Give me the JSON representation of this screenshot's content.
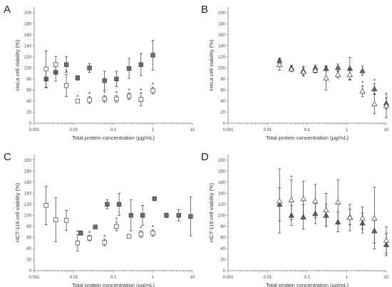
{
  "chart_data": [
    {
      "panel": "A",
      "type": "scatter",
      "xlabel": "Total protein concentration (µg/mL)",
      "ylabel": "HeLa cell viability (%)",
      "xscale": "log",
      "xlim": [
        0.001,
        10
      ],
      "ylim": [
        0,
        210
      ],
      "x_ticks": [
        "0.001",
        "0.01",
        "0.1",
        "1",
        "10"
      ],
      "y_ticks": [
        "0",
        "20",
        "40",
        "60",
        "80",
        "100",
        "120",
        "140",
        "160",
        "180",
        "200"
      ],
      "series": [
        {
          "marker": "filled-square",
          "points": [
            {
              "x": 0.002,
              "y": 80,
              "err": 16
            },
            {
              "x": 0.0035,
              "y": 92,
              "err": 16
            },
            {
              "x": 0.0065,
              "y": 106,
              "err": 14
            },
            {
              "x": 0.0125,
              "y": 82,
              "err": 4
            },
            {
              "x": 0.025,
              "y": 100,
              "err": 8
            },
            {
              "x": 0.06,
              "y": 77,
              "err": 17
            },
            {
              "x": 0.12,
              "y": 80,
              "err": 14
            },
            {
              "x": 0.25,
              "y": 99,
              "err": 18
            },
            {
              "x": 0.5,
              "y": 106,
              "err": 20
            },
            {
              "x": 1.0,
              "y": 123,
              "err": 27
            }
          ]
        },
        {
          "marker": "open-square",
          "points": [
            {
              "x": 0.002,
              "y": 98,
              "err": 33
            },
            {
              "x": 0.0035,
              "y": 106,
              "err": 15
            },
            {
              "x": 0.0065,
              "y": 68,
              "err": 20,
              "sig": true
            },
            {
              "x": 0.0125,
              "y": 40,
              "err": 3,
              "sig": true
            },
            {
              "x": 0.025,
              "y": 42,
              "err": 6,
              "sig": true
            },
            {
              "x": 0.06,
              "y": 44,
              "err": 6,
              "sig": true
            },
            {
              "x": 0.12,
              "y": 44,
              "err": 6,
              "sig": true
            },
            {
              "x": 0.25,
              "y": 49,
              "err": 6,
              "sig": true
            },
            {
              "x": 0.5,
              "y": 43,
              "err": 12,
              "sig": true
            },
            {
              "x": 1.0,
              "y": 59,
              "err": 6,
              "sig": true
            }
          ]
        }
      ]
    },
    {
      "panel": "B",
      "type": "scatter",
      "xlabel": "Total protein concentration (µg/mL)",
      "ylabel": "HeLa cell viability (%)",
      "xscale": "log",
      "xlim": [
        0.001,
        10
      ],
      "ylim": [
        0,
        210
      ],
      "x_ticks": [
        "0.001",
        "0.01",
        "0.1",
        "1",
        "10"
      ],
      "y_ticks": [
        "0",
        "20",
        "40",
        "60",
        "80",
        "100",
        "120",
        "140",
        "160",
        "180",
        "200"
      ],
      "series": [
        {
          "marker": "filled-triangle",
          "points": [
            {
              "x": 0.02,
              "y": 113,
              "err": 5
            },
            {
              "x": 0.04,
              "y": 100,
              "err": 5
            },
            {
              "x": 0.08,
              "y": 95,
              "err": 8
            },
            {
              "x": 0.16,
              "y": 100,
              "err": 5
            },
            {
              "x": 0.3,
              "y": 99,
              "err": 4
            },
            {
              "x": 0.6,
              "y": 101,
              "err": 6
            },
            {
              "x": 1.2,
              "y": 99,
              "err": 20
            },
            {
              "x": 2.5,
              "y": 95,
              "err": 8
            },
            {
              "x": 5,
              "y": 62,
              "err": 10,
              "sig": true
            },
            {
              "x": 10,
              "y": 36,
              "err": 10
            }
          ]
        },
        {
          "marker": "open-triangle",
          "points": [
            {
              "x": 0.02,
              "y": 106,
              "err": 10
            },
            {
              "x": 0.04,
              "y": 98,
              "err": 5
            },
            {
              "x": 0.08,
              "y": 93,
              "err": 8
            },
            {
              "x": 0.16,
              "y": 96,
              "err": 5
            },
            {
              "x": 0.3,
              "y": 82,
              "err": 22
            },
            {
              "x": 0.6,
              "y": 88,
              "err": 6
            },
            {
              "x": 1.2,
              "y": 88,
              "err": 10
            },
            {
              "x": 2.5,
              "y": 58,
              "err": 10,
              "sig": true
            },
            {
              "x": 5,
              "y": 35,
              "err": 18
            },
            {
              "x": 10,
              "y": 32,
              "err": 22
            }
          ]
        }
      ]
    },
    {
      "panel": "C",
      "type": "scatter",
      "xlabel": "Total protein concentration (µg/mL)",
      "ylabel": "HCT-116 cell viability (%)",
      "xscale": "log",
      "xlim": [
        0.001,
        10
      ],
      "ylim": [
        0,
        210
      ],
      "x_ticks": [
        "0.001",
        "0.01",
        "0.1",
        "1",
        "10"
      ],
      "y_ticks": [
        "0",
        "20",
        "40",
        "60",
        "80",
        "100",
        "120",
        "140",
        "160",
        "180",
        "200"
      ],
      "series": [
        {
          "marker": "filled-square",
          "points": [
            {
              "x": 0.015,
              "y": 68,
              "err": 4
            },
            {
              "x": 0.035,
              "y": 79,
              "err": 3
            },
            {
              "x": 0.07,
              "y": 120,
              "err": 8
            },
            {
              "x": 0.14,
              "y": 120,
              "err": 20
            },
            {
              "x": 0.28,
              "y": 100,
              "err": 28
            },
            {
              "x": 0.55,
              "y": 100,
              "err": 18
            },
            {
              "x": 1.1,
              "y": 130,
              "err": 3
            },
            {
              "x": 2.2,
              "y": 100,
              "err": 4
            },
            {
              "x": 4.5,
              "y": 100,
              "err": 10
            },
            {
              "x": 9,
              "y": 98,
              "err": 35
            }
          ]
        },
        {
          "marker": "open-square",
          "points": [
            {
              "x": 0.002,
              "y": 118,
              "err": 35
            },
            {
              "x": 0.0035,
              "y": 92,
              "err": 40
            },
            {
              "x": 0.0065,
              "y": 91,
              "err": 18
            },
            {
              "x": 0.0125,
              "y": 50,
              "err": 15,
              "sig": true
            },
            {
              "x": 0.025,
              "y": 59,
              "err": 5,
              "sig": true
            },
            {
              "x": 0.06,
              "y": 51,
              "err": 6,
              "sig": true
            },
            {
              "x": 0.12,
              "y": 80,
              "err": 8,
              "sig": true
            },
            {
              "x": 0.25,
              "y": 62,
              "err": 3
            },
            {
              "x": 0.5,
              "y": 66,
              "err": 6,
              "sig": true
            },
            {
              "x": 1.0,
              "y": 68,
              "err": 6,
              "sig": true
            }
          ]
        }
      ]
    },
    {
      "panel": "D",
      "type": "scatter",
      "xlabel": "Total protein concentration (µg/mL)",
      "ylabel": "HCT-116 cell viability (%)",
      "xscale": "log",
      "xlim": [
        0.001,
        10
      ],
      "ylim": [
        0,
        210
      ],
      "x_ticks": [
        "0.001",
        "0.01",
        "0.1",
        "1",
        "10"
      ],
      "y_ticks": [
        "0",
        "20",
        "40",
        "60",
        "80",
        "100",
        "120",
        "140",
        "160",
        "180",
        "200"
      ],
      "series": [
        {
          "marker": "filled-triangle",
          "points": [
            {
              "x": 0.02,
              "y": 120,
              "err": 30
            },
            {
              "x": 0.04,
              "y": 100,
              "err": 18
            },
            {
              "x": 0.08,
              "y": 97,
              "err": 22
            },
            {
              "x": 0.16,
              "y": 103,
              "err": 18
            },
            {
              "x": 0.3,
              "y": 100,
              "err": 20
            },
            {
              "x": 0.6,
              "y": 88,
              "err": 18
            },
            {
              "x": 1.2,
              "y": 97,
              "err": 14
            },
            {
              "x": 2.5,
              "y": 86,
              "err": 18
            },
            {
              "x": 5,
              "y": 72,
              "err": 22
            },
            {
              "x": 10,
              "y": 47,
              "err": 20
            }
          ]
        },
        {
          "marker": "open-triangle",
          "points": [
            {
              "x": 0.02,
              "y": 126,
              "err": 58
            },
            {
              "x": 0.04,
              "y": 128,
              "err": 36,
              "sig": true
            },
            {
              "x": 0.08,
              "y": 130,
              "err": 32
            },
            {
              "x": 0.16,
              "y": 126,
              "err": 30
            },
            {
              "x": 0.3,
              "y": 110,
              "err": 30
            },
            {
              "x": 0.6,
              "y": 124,
              "err": 40
            },
            {
              "x": 1.2,
              "y": 96,
              "err": 24
            },
            {
              "x": 2.5,
              "y": 95,
              "err": 20
            },
            {
              "x": 5,
              "y": 95,
              "err": 56
            },
            {
              "x": 10,
              "y": 55,
              "err": 24
            }
          ]
        }
      ]
    }
  ],
  "colors": {
    "filled_marker": "#6e6e6e",
    "open_marker_fill": "#ffffff",
    "marker_stroke": "#3a3a3a",
    "axis": "#777777"
  }
}
